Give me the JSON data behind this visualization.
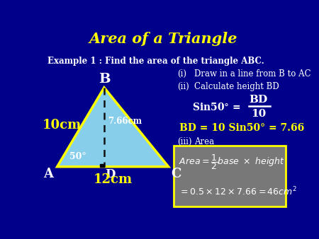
{
  "title": "Area of a Triangle",
  "title_color": "#FFFF00",
  "bg_color": "#00008B",
  "example_text": "Example 1 : Find the area of the triangle ABC.",
  "example_color": "#FFFFFF",
  "triangle_fill": "#87CEEB",
  "triangle_edge": "#FFFF00",
  "A": [
    0.07,
    0.25
  ],
  "B": [
    0.26,
    0.68
  ],
  "C": [
    0.52,
    0.25
  ],
  "D": [
    0.26,
    0.25
  ],
  "label_A": "A",
  "label_B": "B",
  "label_C": "C",
  "label_D": "D",
  "side_AB": "10cm",
  "side_AC": "12cm",
  "height_label": "7.66cm",
  "angle_label": "50°",
  "step_i_num": "(i)",
  "step_i_text": "Draw in a line from B to AC",
  "step_ii_num": "(ii)",
  "step_ii_text": "Calculate height BD",
  "bd_formula": "BD = 10 Sin50° = 7.66",
  "step_iii_num": "(iii)",
  "step_iii_text": "Area",
  "box_bg": "#787878",
  "white": "#FFFFFF",
  "yellow": "#FFFF00"
}
